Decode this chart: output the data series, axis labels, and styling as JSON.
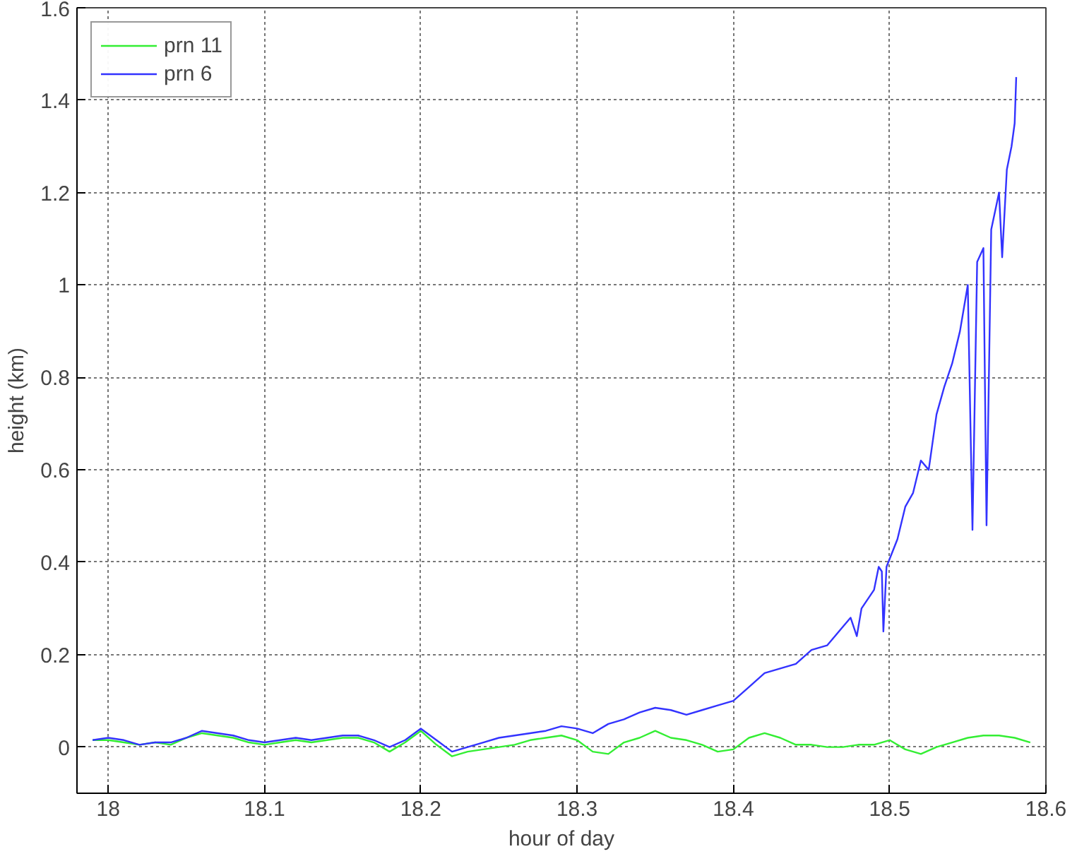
{
  "chart_data": {
    "type": "line",
    "xlabel": "hour of day",
    "ylabel": "height (km)",
    "xlim": [
      17.98,
      18.6
    ],
    "xticks": [
      18,
      18.1,
      18.2,
      18.3,
      18.4,
      18.5,
      18.6
    ],
    "ylim": [
      -0.1,
      1.6
    ],
    "yticks": [
      0,
      0.2,
      0.4,
      0.6,
      0.8,
      1,
      1.2,
      1.4,
      1.6
    ],
    "grid": true,
    "legend": "top left",
    "line_style": "solid",
    "series": [
      {
        "name": "prn 11",
        "color": "#33ee33",
        "x": [
          17.99,
          18.0,
          18.01,
          18.02,
          18.03,
          18.04,
          18.05,
          18.06,
          18.07,
          18.08,
          18.09,
          18.1,
          18.11,
          18.12,
          18.13,
          18.14,
          18.15,
          18.16,
          18.17,
          18.18,
          18.19,
          18.2,
          18.21,
          18.22,
          18.23,
          18.24,
          18.25,
          18.26,
          18.27,
          18.28,
          18.29,
          18.3,
          18.31,
          18.32,
          18.33,
          18.34,
          18.35,
          18.36,
          18.37,
          18.38,
          18.39,
          18.4,
          18.41,
          18.42,
          18.43,
          18.44,
          18.45,
          18.46,
          18.47,
          18.48,
          18.49,
          18.5,
          18.51,
          18.52,
          18.53,
          18.54,
          18.55,
          18.56,
          18.57,
          18.58,
          18.59
        ],
        "values": [
          0.015,
          0.015,
          0.01,
          0.005,
          0.01,
          0.005,
          0.02,
          0.03,
          0.025,
          0.02,
          0.01,
          0.005,
          0.01,
          0.015,
          0.01,
          0.015,
          0.02,
          0.02,
          0.01,
          -0.01,
          0.01,
          0.035,
          0.005,
          -0.02,
          -0.01,
          -0.005,
          0.0,
          0.005,
          0.015,
          0.02,
          0.025,
          0.015,
          -0.01,
          -0.015,
          0.01,
          0.02,
          0.035,
          0.02,
          0.015,
          0.005,
          -0.01,
          -0.005,
          0.02,
          0.03,
          0.02,
          0.005,
          0.005,
          0.0,
          0.0,
          0.005,
          0.005,
          0.015,
          -0.005,
          -0.015,
          0.0,
          0.01,
          0.02,
          0.025,
          0.025,
          0.02,
          0.01
        ]
      },
      {
        "name": "prn 6",
        "color": "#3333ff",
        "x": [
          17.99,
          18.0,
          18.01,
          18.02,
          18.03,
          18.04,
          18.05,
          18.06,
          18.07,
          18.08,
          18.09,
          18.1,
          18.11,
          18.12,
          18.13,
          18.14,
          18.15,
          18.16,
          18.17,
          18.18,
          18.19,
          18.2,
          18.21,
          18.22,
          18.23,
          18.24,
          18.25,
          18.26,
          18.27,
          18.28,
          18.29,
          18.3,
          18.31,
          18.32,
          18.33,
          18.34,
          18.35,
          18.36,
          18.37,
          18.38,
          18.39,
          18.4,
          18.41,
          18.42,
          18.43,
          18.44,
          18.45,
          18.46,
          18.47,
          18.475,
          18.479,
          18.482,
          18.49,
          18.493,
          18.495,
          18.496,
          18.498,
          18.505,
          18.51,
          18.515,
          18.52,
          18.525,
          18.53,
          18.535,
          18.54,
          18.545,
          18.55,
          18.553,
          18.556,
          18.56,
          18.562,
          18.565,
          18.57,
          18.572,
          18.575,
          18.578,
          18.58,
          18.581
        ],
        "values": [
          0.015,
          0.02,
          0.015,
          0.005,
          0.01,
          0.01,
          0.02,
          0.035,
          0.03,
          0.025,
          0.015,
          0.01,
          0.015,
          0.02,
          0.015,
          0.02,
          0.025,
          0.025,
          0.015,
          0.0,
          0.015,
          0.04,
          0.015,
          -0.01,
          0.0,
          0.01,
          0.02,
          0.025,
          0.03,
          0.035,
          0.045,
          0.04,
          0.03,
          0.05,
          0.06,
          0.075,
          0.085,
          0.08,
          0.07,
          0.08,
          0.09,
          0.1,
          0.13,
          0.16,
          0.17,
          0.18,
          0.21,
          0.22,
          0.26,
          0.28,
          0.24,
          0.3,
          0.34,
          0.39,
          0.38,
          0.25,
          0.39,
          0.45,
          0.52,
          0.55,
          0.62,
          0.6,
          0.72,
          0.78,
          0.83,
          0.9,
          1.0,
          0.47,
          1.05,
          1.08,
          0.48,
          1.12,
          1.2,
          1.06,
          1.25,
          1.3,
          1.35,
          1.45
        ]
      }
    ]
  }
}
